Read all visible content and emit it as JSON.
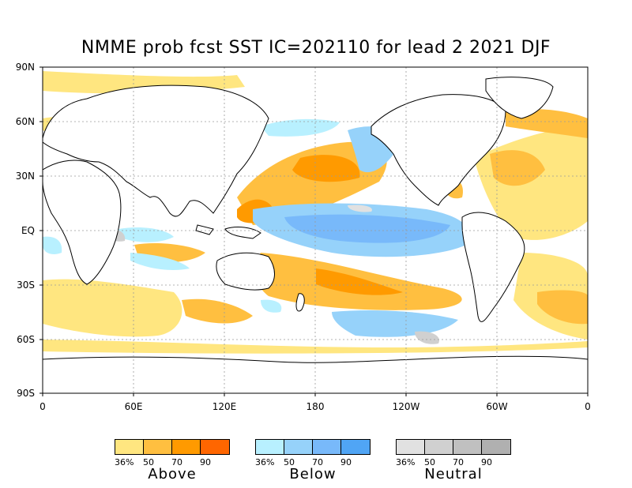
{
  "title": "NMME prob fcst SST IC=202110 for lead 2 2021 DJF",
  "lat_labels": [
    "90N",
    "60N",
    "30N",
    "EQ",
    "30S",
    "60S",
    "90S"
  ],
  "lon_labels": [
    "0",
    "60E",
    "120E",
    "180",
    "120W",
    "60W",
    "0"
  ],
  "legends": [
    {
      "name": "Above",
      "ticks": [
        "36%",
        "50",
        "70",
        "90"
      ],
      "colors": [
        "#ffe680",
        "#ffbf40",
        "#ff9a00",
        "#ff6600"
      ]
    },
    {
      "name": "Below",
      "ticks": [
        "36%",
        "50",
        "70",
        "90"
      ],
      "colors": [
        "#b8f0ff",
        "#96d2fa",
        "#78b9fa",
        "#50a5f5"
      ]
    },
    {
      "name": "Neutral",
      "ticks": [
        "36%",
        "50",
        "70",
        "90"
      ],
      "colors": [
        "#e1e1e1",
        "#d0d0d0",
        "#c0c0c0",
        "#b0b0b0"
      ]
    }
  ]
}
